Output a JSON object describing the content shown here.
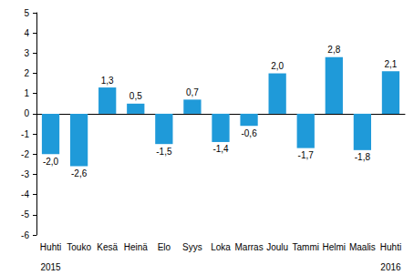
{
  "chart_data": {
    "type": "bar",
    "categories": [
      "Huhti",
      "Touko",
      "Kesä",
      "Heinä",
      "Elo",
      "Syys",
      "Loka",
      "Marras",
      "Joulu",
      "Tammi",
      "Helmi",
      "Maalis",
      "Huhti"
    ],
    "values": [
      -2.0,
      -2.6,
      1.3,
      0.5,
      -1.5,
      0.7,
      -1.4,
      -0.6,
      2.0,
      -1.7,
      2.8,
      -1.8,
      2.1
    ],
    "value_labels": [
      "-2,0",
      "-2,6",
      "1,3",
      "0,5",
      "-1,5",
      "0,7",
      "-1,4",
      "-0,6",
      "2,0",
      "-1,7",
      "2,8",
      "-1,8",
      "2,1"
    ],
    "color": "#1f9ad9",
    "ylim": [
      -6,
      5
    ],
    "yticks": [
      -6,
      -5,
      -4,
      -3,
      -2,
      -1,
      0,
      1,
      2,
      3,
      4,
      5
    ],
    "grid": false,
    "data_labels": true,
    "annotations": [
      {
        "text": "2015",
        "category_index": 0
      },
      {
        "text": "2016",
        "category_index": 12
      }
    ]
  }
}
